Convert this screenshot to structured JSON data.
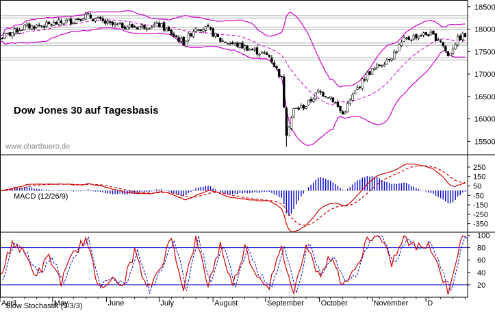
{
  "chart_data": [
    {
      "panel": "price",
      "type": "candlestick",
      "title": "Dow Jones 30 auf Tagesbasis",
      "watermark": "www.chartbuero.de",
      "ylim": [
        15200,
        18650
      ],
      "y_ticks": [
        15500,
        16000,
        16500,
        17000,
        17500,
        18000,
        18500
      ],
      "x_labels": [
        "April",
        "May",
        "June",
        "July",
        "August",
        "September",
        "October",
        "November",
        "D"
      ],
      "bollinger": true,
      "horizontal_bands": [
        [
          18250,
          18300
        ],
        [
          17990,
          18040
        ],
        [
          17640,
          17690
        ],
        [
          17310,
          17360
        ]
      ],
      "anchors": [
        {
          "week": 0,
          "v": 17800
        },
        {
          "week": 2,
          "v": 18050
        },
        {
          "week": 4,
          "v": 18100
        },
        {
          "week": 6,
          "v": 18200
        },
        {
          "week": 7,
          "v": 18300
        },
        {
          "week": 9,
          "v": 18100
        },
        {
          "week": 11,
          "v": 18050
        },
        {
          "week": 13,
          "v": 18100
        },
        {
          "week": 15,
          "v": 17700
        },
        {
          "week": 16,
          "v": 18050
        },
        {
          "week": 17,
          "v": 18000
        },
        {
          "week": 18,
          "v": 17750
        },
        {
          "week": 20,
          "v": 17600
        },
        {
          "week": 22,
          "v": 17400
        },
        {
          "week": 23,
          "v": 16900
        },
        {
          "week": 23.4,
          "v": 15700
        },
        {
          "week": 24,
          "v": 16200
        },
        {
          "week": 25,
          "v": 16300
        },
        {
          "week": 26,
          "v": 16600
        },
        {
          "week": 27,
          "v": 16500
        },
        {
          "week": 28,
          "v": 16100
        },
        {
          "week": 29,
          "v": 16600
        },
        {
          "week": 30,
          "v": 17000
        },
        {
          "week": 31,
          "v": 17200
        },
        {
          "week": 32,
          "v": 17400
        },
        {
          "week": 33,
          "v": 17750
        },
        {
          "week": 34,
          "v": 17850
        },
        {
          "week": 35,
          "v": 17900
        },
        {
          "week": 36,
          "v": 17750
        },
        {
          "week": 36.6,
          "v": 17400
        },
        {
          "week": 37.3,
          "v": 17750
        },
        {
          "week": 37.8,
          "v": 17850
        }
      ],
      "colors": {
        "up": "#ffffff",
        "down": "#000000",
        "band": "#cc00cc",
        "ma": "#cc00cc"
      }
    },
    {
      "panel": "macd",
      "type": "line",
      "label": "MACD (12/26/9)",
      "ylim": [
        -440,
        380
      ],
      "y_ticks": [
        250,
        150,
        50,
        -50,
        -150,
        -250,
        -350
      ],
      "y_tick_labels": [
        "250",
        "150",
        "50",
        "-50",
        "-150",
        "-250",
        "-350"
      ],
      "colors": {
        "macd": "#cc0000",
        "signal": "#cc0000",
        "histogram": "#0000cc"
      }
    },
    {
      "panel": "stochastic",
      "type": "line",
      "label": "Slow Stochastik (5/3/3)",
      "ylim": [
        0,
        105
      ],
      "y_ticks": [
        100,
        80,
        60,
        40,
        20
      ],
      "y_tick_labels": [
        "100",
        "80",
        "60",
        "40",
        "20"
      ],
      "levels": [
        80,
        20
      ],
      "anchors": [
        {
          "week": 0,
          "v": 30
        },
        {
          "week": 1,
          "v": 90
        },
        {
          "week": 2,
          "v": 70
        },
        {
          "week": 3,
          "v": 35
        },
        {
          "week": 4,
          "v": 65
        },
        {
          "week": 5,
          "v": 25
        },
        {
          "week": 6,
          "v": 70
        },
        {
          "week": 7,
          "v": 95
        },
        {
          "week": 8,
          "v": 20
        },
        {
          "week": 9,
          "v": 28
        },
        {
          "week": 10,
          "v": 18
        },
        {
          "week": 11,
          "v": 75
        },
        {
          "week": 12,
          "v": 10
        },
        {
          "week": 13,
          "v": 45
        },
        {
          "week": 14,
          "v": 95
        },
        {
          "week": 15,
          "v": 15
        },
        {
          "week": 16,
          "v": 95
        },
        {
          "week": 17,
          "v": 20
        },
        {
          "week": 18,
          "v": 85
        },
        {
          "week": 19,
          "v": 18
        },
        {
          "week": 20,
          "v": 80
        },
        {
          "week": 21,
          "v": 35
        },
        {
          "week": 22,
          "v": 20
        },
        {
          "week": 23,
          "v": 78
        },
        {
          "week": 24,
          "v": 5
        },
        {
          "week": 25,
          "v": 90
        },
        {
          "week": 26,
          "v": 35
        },
        {
          "week": 27,
          "v": 65
        },
        {
          "week": 28,
          "v": 22
        },
        {
          "week": 29,
          "v": 40
        },
        {
          "week": 30,
          "v": 95
        },
        {
          "week": 31,
          "v": 97
        },
        {
          "week": 32,
          "v": 55
        },
        {
          "week": 33,
          "v": 95
        },
        {
          "week": 34,
          "v": 80
        },
        {
          "week": 35,
          "v": 88
        },
        {
          "week": 36,
          "v": 40
        },
        {
          "week": 36.6,
          "v": 10
        },
        {
          "week": 37.3,
          "v": 65
        },
        {
          "week": 37.8,
          "v": 95
        }
      ],
      "colors": {
        "k": "#cc0000",
        "d": "#0000cc",
        "levels": "#0000cc"
      }
    }
  ]
}
